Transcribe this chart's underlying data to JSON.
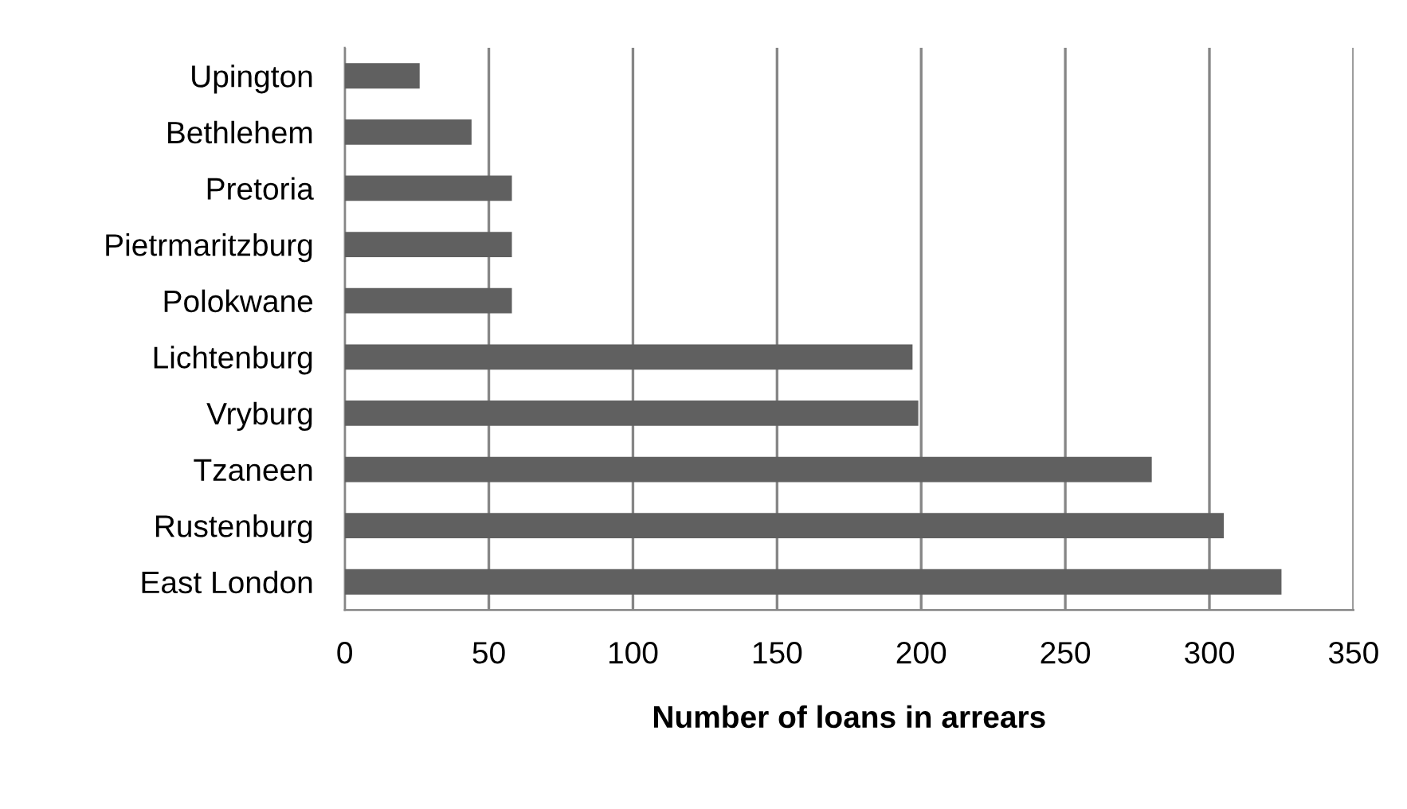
{
  "chart_data": {
    "type": "bar",
    "orientation": "horizontal",
    "xlabel": "Number of loans in arrears",
    "categories": [
      "Upington",
      "Bethlehem",
      "Pretoria",
      "Pietrmaritzburg",
      "Polokwane",
      "Lichtenburg",
      "Vryburg",
      "Tzaneen",
      "Rustenburg",
      "East London"
    ],
    "values": [
      26,
      44,
      58,
      58,
      58,
      197,
      199,
      280,
      305,
      325
    ],
    "color": "#606060",
    "xlim": [
      0,
      350
    ],
    "xticks": [
      0,
      50,
      100,
      150,
      200,
      250,
      300,
      350
    ],
    "grid": "x"
  }
}
